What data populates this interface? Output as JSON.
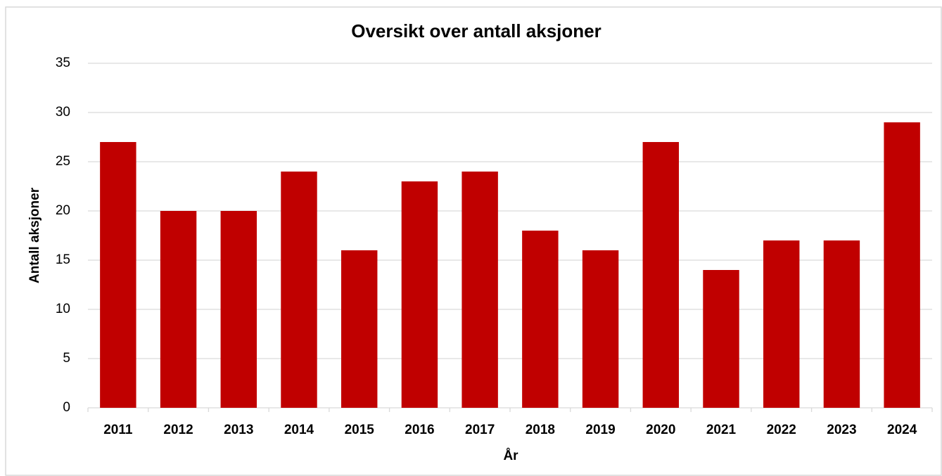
{
  "chart_data": {
    "type": "bar",
    "title": "Oversikt over antall aksjoner",
    "x_label": "År",
    "y_label": "Antall aksjoner",
    "categories": [
      "2011",
      "2012",
      "2013",
      "2014",
      "2015",
      "2016",
      "2017",
      "2018",
      "2019",
      "2020",
      "2021",
      "2022",
      "2023",
      "2024"
    ],
    "values": [
      27,
      20,
      20,
      24,
      16,
      23,
      24,
      18,
      16,
      27,
      14,
      17,
      17,
      29
    ],
    "color": "#c00000",
    "ylim": [
      0,
      35
    ],
    "yticks": [
      0,
      5,
      10,
      15,
      20,
      25,
      30,
      35
    ],
    "grid": true
  }
}
